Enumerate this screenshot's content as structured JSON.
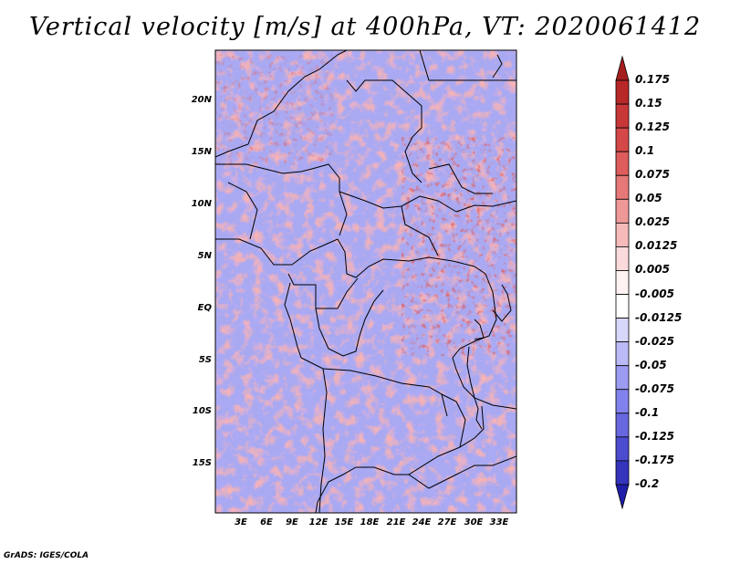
{
  "title": "Vertical velocity [m/s] at 400hPa, VT: 2020061412",
  "latitude_labels": [
    "20N",
    "15N",
    "10N",
    "5N",
    "EQ",
    "5S",
    "10S",
    "15S"
  ],
  "longitude_labels": [
    "3E",
    "6E",
    "9E",
    "12E",
    "15E",
    "18E",
    "21E",
    "24E",
    "27E",
    "30E",
    "33E"
  ],
  "colorbar": {
    "levels": [
      "0.175",
      "0.15",
      "0.125",
      "0.1",
      "0.075",
      "0.05",
      "0.025",
      "0.0125",
      "0.005",
      "-0.005",
      "-0.0125",
      "-0.025",
      "-0.05",
      "-0.075",
      "-0.1",
      "-0.125",
      "-0.175",
      "-0.2"
    ],
    "colors": [
      "#a51e1e",
      "#b82828",
      "#c83838",
      "#d44848",
      "#de5c5c",
      "#e77878",
      "#ef9898",
      "#f6baba",
      "#fadada",
      "#fff2f2",
      "#ffffff",
      "#d7d7fa",
      "#babaf6",
      "#9c9cf2",
      "#8282ee",
      "#6767e0",
      "#4c4cd0",
      "#3434bd",
      "#1e1ea8"
    ]
  },
  "credit": "GrADS: IGES/COLA"
}
